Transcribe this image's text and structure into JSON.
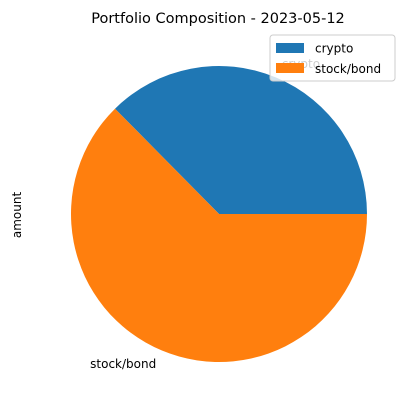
{
  "chart_data": {
    "type": "pie",
    "title": "Portfolio Composition - 2023-05-12",
    "ylabel": "amount",
    "categories": [
      "crypto",
      "stock/bond"
    ],
    "values": [
      37.4,
      62.6
    ],
    "colors": [
      "#1f77b4",
      "#ff7f0e"
    ],
    "legend": {
      "placement": "top-right",
      "entries": [
        "crypto",
        "stock/bond"
      ]
    }
  }
}
